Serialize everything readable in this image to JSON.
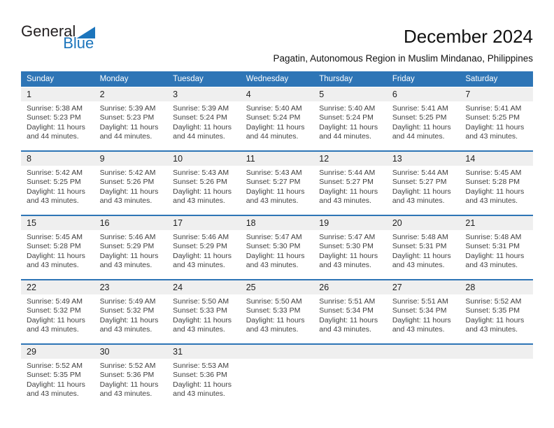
{
  "logo": {
    "part1": "General",
    "part2": "Blue"
  },
  "title": "December 2024",
  "subtitle": "Pagatin, Autonomous Region in Muslim Mindanao, Philippines",
  "colors": {
    "accent": "#2e75b6",
    "band_bg": "#efefef",
    "logo_blue": "#1c75bc",
    "header_text": "#ffffff",
    "body_text": "#3f3f3f"
  },
  "calendar": {
    "weekdays": [
      "Sunday",
      "Monday",
      "Tuesday",
      "Wednesday",
      "Thursday",
      "Friday",
      "Saturday"
    ],
    "weeks": [
      [
        {
          "day": "1",
          "lines": [
            "Sunrise: 5:38 AM",
            "Sunset: 5:23 PM",
            "Daylight: 11 hours",
            "and 44 minutes."
          ]
        },
        {
          "day": "2",
          "lines": [
            "Sunrise: 5:39 AM",
            "Sunset: 5:23 PM",
            "Daylight: 11 hours",
            "and 44 minutes."
          ]
        },
        {
          "day": "3",
          "lines": [
            "Sunrise: 5:39 AM",
            "Sunset: 5:24 PM",
            "Daylight: 11 hours",
            "and 44 minutes."
          ]
        },
        {
          "day": "4",
          "lines": [
            "Sunrise: 5:40 AM",
            "Sunset: 5:24 PM",
            "Daylight: 11 hours",
            "and 44 minutes."
          ]
        },
        {
          "day": "5",
          "lines": [
            "Sunrise: 5:40 AM",
            "Sunset: 5:24 PM",
            "Daylight: 11 hours",
            "and 44 minutes."
          ]
        },
        {
          "day": "6",
          "lines": [
            "Sunrise: 5:41 AM",
            "Sunset: 5:25 PM",
            "Daylight: 11 hours",
            "and 44 minutes."
          ]
        },
        {
          "day": "7",
          "lines": [
            "Sunrise: 5:41 AM",
            "Sunset: 5:25 PM",
            "Daylight: 11 hours",
            "and 43 minutes."
          ]
        }
      ],
      [
        {
          "day": "8",
          "lines": [
            "Sunrise: 5:42 AM",
            "Sunset: 5:25 PM",
            "Daylight: 11 hours",
            "and 43 minutes."
          ]
        },
        {
          "day": "9",
          "lines": [
            "Sunrise: 5:42 AM",
            "Sunset: 5:26 PM",
            "Daylight: 11 hours",
            "and 43 minutes."
          ]
        },
        {
          "day": "10",
          "lines": [
            "Sunrise: 5:43 AM",
            "Sunset: 5:26 PM",
            "Daylight: 11 hours",
            "and 43 minutes."
          ]
        },
        {
          "day": "11",
          "lines": [
            "Sunrise: 5:43 AM",
            "Sunset: 5:27 PM",
            "Daylight: 11 hours",
            "and 43 minutes."
          ]
        },
        {
          "day": "12",
          "lines": [
            "Sunrise: 5:44 AM",
            "Sunset: 5:27 PM",
            "Daylight: 11 hours",
            "and 43 minutes."
          ]
        },
        {
          "day": "13",
          "lines": [
            "Sunrise: 5:44 AM",
            "Sunset: 5:27 PM",
            "Daylight: 11 hours",
            "and 43 minutes."
          ]
        },
        {
          "day": "14",
          "lines": [
            "Sunrise: 5:45 AM",
            "Sunset: 5:28 PM",
            "Daylight: 11 hours",
            "and 43 minutes."
          ]
        }
      ],
      [
        {
          "day": "15",
          "lines": [
            "Sunrise: 5:45 AM",
            "Sunset: 5:28 PM",
            "Daylight: 11 hours",
            "and 43 minutes."
          ]
        },
        {
          "day": "16",
          "lines": [
            "Sunrise: 5:46 AM",
            "Sunset: 5:29 PM",
            "Daylight: 11 hours",
            "and 43 minutes."
          ]
        },
        {
          "day": "17",
          "lines": [
            "Sunrise: 5:46 AM",
            "Sunset: 5:29 PM",
            "Daylight: 11 hours",
            "and 43 minutes."
          ]
        },
        {
          "day": "18",
          "lines": [
            "Sunrise: 5:47 AM",
            "Sunset: 5:30 PM",
            "Daylight: 11 hours",
            "and 43 minutes."
          ]
        },
        {
          "day": "19",
          "lines": [
            "Sunrise: 5:47 AM",
            "Sunset: 5:30 PM",
            "Daylight: 11 hours",
            "and 43 minutes."
          ]
        },
        {
          "day": "20",
          "lines": [
            "Sunrise: 5:48 AM",
            "Sunset: 5:31 PM",
            "Daylight: 11 hours",
            "and 43 minutes."
          ]
        },
        {
          "day": "21",
          "lines": [
            "Sunrise: 5:48 AM",
            "Sunset: 5:31 PM",
            "Daylight: 11 hours",
            "and 43 minutes."
          ]
        }
      ],
      [
        {
          "day": "22",
          "lines": [
            "Sunrise: 5:49 AM",
            "Sunset: 5:32 PM",
            "Daylight: 11 hours",
            "and 43 minutes."
          ]
        },
        {
          "day": "23",
          "lines": [
            "Sunrise: 5:49 AM",
            "Sunset: 5:32 PM",
            "Daylight: 11 hours",
            "and 43 minutes."
          ]
        },
        {
          "day": "24",
          "lines": [
            "Sunrise: 5:50 AM",
            "Sunset: 5:33 PM",
            "Daylight: 11 hours",
            "and 43 minutes."
          ]
        },
        {
          "day": "25",
          "lines": [
            "Sunrise: 5:50 AM",
            "Sunset: 5:33 PM",
            "Daylight: 11 hours",
            "and 43 minutes."
          ]
        },
        {
          "day": "26",
          "lines": [
            "Sunrise: 5:51 AM",
            "Sunset: 5:34 PM",
            "Daylight: 11 hours",
            "and 43 minutes."
          ]
        },
        {
          "day": "27",
          "lines": [
            "Sunrise: 5:51 AM",
            "Sunset: 5:34 PM",
            "Daylight: 11 hours",
            "and 43 minutes."
          ]
        },
        {
          "day": "28",
          "lines": [
            "Sunrise: 5:52 AM",
            "Sunset: 5:35 PM",
            "Daylight: 11 hours",
            "and 43 minutes."
          ]
        }
      ],
      [
        {
          "day": "29",
          "lines": [
            "Sunrise: 5:52 AM",
            "Sunset: 5:35 PM",
            "Daylight: 11 hours",
            "and 43 minutes."
          ]
        },
        {
          "day": "30",
          "lines": [
            "Sunrise: 5:52 AM",
            "Sunset: 5:36 PM",
            "Daylight: 11 hours",
            "and 43 minutes."
          ]
        },
        {
          "day": "31",
          "lines": [
            "Sunrise: 5:53 AM",
            "Sunset: 5:36 PM",
            "Daylight: 11 hours",
            "and 43 minutes."
          ]
        },
        {
          "day": "",
          "lines": []
        },
        {
          "day": "",
          "lines": []
        },
        {
          "day": "",
          "lines": []
        },
        {
          "day": "",
          "lines": []
        }
      ]
    ]
  }
}
